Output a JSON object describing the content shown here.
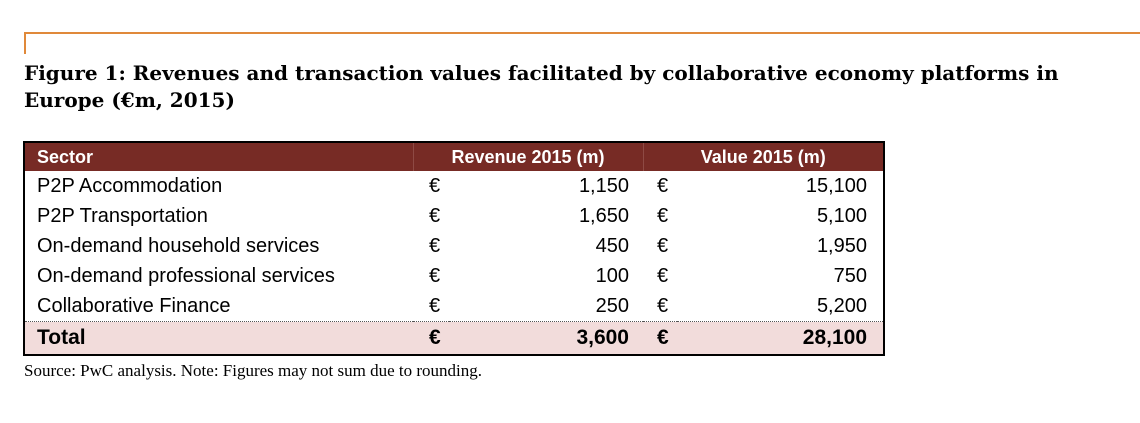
{
  "figure": {
    "title": "Figure 1: Revenues and transaction values facilitated by collaborative economy platforms in Europe (€m, 2015)",
    "accent_color": "#e0893a",
    "header_color": "#772b25",
    "total_row_color": "#f2dcdb"
  },
  "table": {
    "headers": {
      "sector": "Sector",
      "revenue": "Revenue 2015 (m)",
      "value": "Value 2015 (m)"
    },
    "rows": [
      {
        "sector": "P2P Accommodation",
        "rev_cur": "€",
        "revenue": "1,150",
        "val_cur": "€",
        "value": "15,100"
      },
      {
        "sector": "P2P Transportation",
        "rev_cur": "€",
        "revenue": "1,650",
        "val_cur": "€",
        "value": "5,100"
      },
      {
        "sector": "On-demand household services",
        "rev_cur": "€",
        "revenue": "450",
        "val_cur": "€",
        "value": "1,950"
      },
      {
        "sector": "On-demand professional services",
        "rev_cur": "€",
        "revenue": "100",
        "val_cur": "€",
        "value": "750"
      },
      {
        "sector": "Collaborative Finance",
        "rev_cur": "€",
        "revenue": "250",
        "val_cur": "€",
        "value": "5,200"
      }
    ],
    "total": {
      "sector": "Total",
      "rev_cur": "€",
      "revenue": "3,600",
      "val_cur": "€",
      "value": "28,100"
    }
  },
  "source": "Source: PwC analysis. Note: Figures may not sum due to rounding."
}
